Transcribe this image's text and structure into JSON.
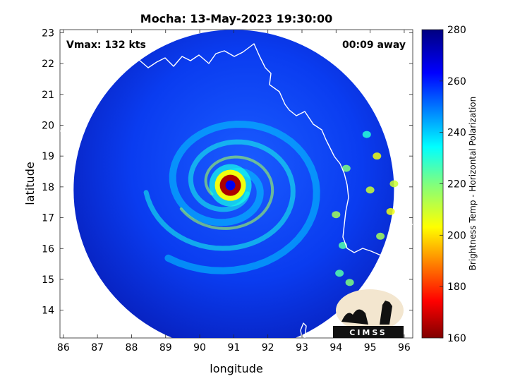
{
  "chart_data": {
    "type": "heatmap",
    "title": "Mocha: 13-May-2023 19:30:00",
    "xlabel": "longitude",
    "ylabel": "latitude",
    "x_ticks": [
      86,
      87,
      88,
      89,
      90,
      91,
      92,
      93,
      94,
      95,
      96
    ],
    "y_ticks": [
      14,
      15,
      16,
      17,
      18,
      19,
      20,
      21,
      22,
      23
    ],
    "xlim": [
      85.9,
      96.25
    ],
    "ylim": [
      13.1,
      23.1
    ],
    "colorbar": {
      "label": "Brightness Temp - Horizontal Polarization",
      "ticks": [
        160,
        180,
        200,
        220,
        240,
        260,
        280
      ],
      "range": [
        160,
        280
      ]
    },
    "annotations": {
      "vmax": "Vmax: 132 kts",
      "time_offset": "00:09 away"
    },
    "storm_center": {
      "lon": 90.9,
      "lat": 18.05
    },
    "eye_temperature": 265,
    "eyewall_temperature": 165,
    "background_temperature": 262,
    "swath": {
      "center_lon": 91.0,
      "center_lat": 17.9,
      "radius_deg": 4.7
    },
    "logo_text": "CIMSS"
  }
}
